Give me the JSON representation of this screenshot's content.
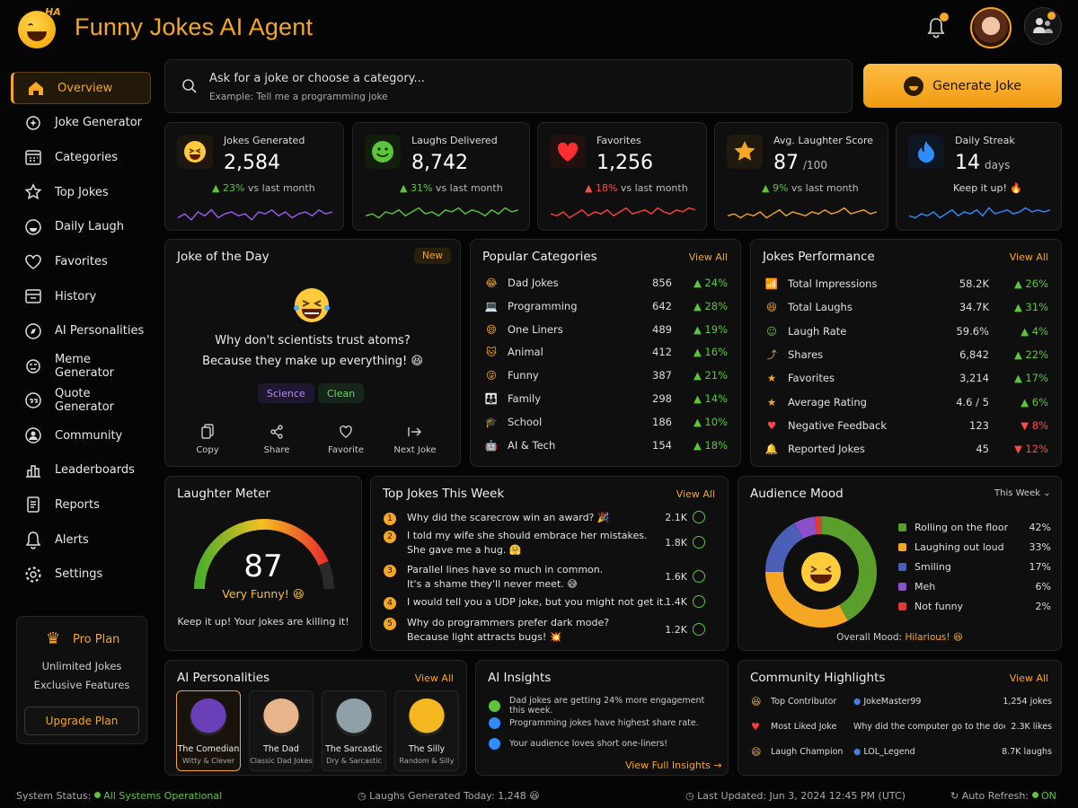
{
  "header": {
    "title": "Funny Jokes AI Agent",
    "logo_text": "HA"
  },
  "sidebar": {
    "items": [
      {
        "label": "Overview",
        "icon": "home-icon",
        "active": true
      },
      {
        "label": "Joke Generator",
        "icon": "sparkle-gear-icon"
      },
      {
        "label": "Categories",
        "icon": "calendar-grid-icon"
      },
      {
        "label": "Top Jokes",
        "icon": "star-icon"
      },
      {
        "label": "Daily Laugh",
        "icon": "laugh-icon"
      },
      {
        "label": "Favorites",
        "icon": "heart-icon"
      },
      {
        "label": "History",
        "icon": "history-icon"
      },
      {
        "label": "AI Personalities",
        "icon": "compass-icon"
      },
      {
        "label": "Meme Generator",
        "icon": "meme-icon"
      },
      {
        "label": "Quote Generator",
        "icon": "quote-icon"
      },
      {
        "label": "Community",
        "icon": "community-icon"
      },
      {
        "label": "Leaderboards",
        "icon": "leaderboard-icon"
      },
      {
        "label": "Reports",
        "icon": "report-icon"
      },
      {
        "label": "Alerts",
        "icon": "bell-icon"
      },
      {
        "label": "Settings",
        "icon": "gear-icon"
      }
    ],
    "pro": {
      "title": "Pro Plan",
      "line1": "Unlimited Jokes",
      "line2": "Exclusive Features",
      "button": "Upgrade Plan"
    }
  },
  "search": {
    "placeholder": "Ask for a joke or choose a category...",
    "example": "Example: Tell me a programming joke"
  },
  "generate_button": "Generate Joke",
  "stats": [
    {
      "label": "Jokes Generated",
      "value": "2,584",
      "unit": "",
      "trend_dir": "up",
      "trend": "23%",
      "trend_suffix": "vs last month",
      "color": "#9b5cf5",
      "icon": "laughing-face-icon"
    },
    {
      "label": "Laughs Delivered",
      "value": "8,742",
      "unit": "",
      "trend_dir": "up",
      "trend": "31%",
      "trend_suffix": "vs last month",
      "color": "#5cc53b",
      "icon": "smile-face-icon"
    },
    {
      "label": "Favorites",
      "value": "1,256",
      "unit": "",
      "trend_dir": "up",
      "trend": "18%",
      "trend_suffix": "vs last month",
      "color": "#ff4040",
      "icon": "heart-icon"
    },
    {
      "label": "Avg. Laughter Score",
      "value": "87",
      "unit": "/100",
      "trend_dir": "up",
      "trend": "9%",
      "trend_suffix": "vs last month",
      "color": "#f5a623",
      "icon": "star-icon"
    },
    {
      "label": "Daily Streak",
      "value": "14",
      "unit": "days",
      "trend_dir": "",
      "trend": "",
      "trend_suffix": "Keep it up! 🔥",
      "color": "#2f8cff",
      "icon": "flame-icon"
    }
  ],
  "joke_of_day": {
    "title": "Joke of the Day",
    "badge": "New",
    "line1": "Why don't scientists trust atoms?",
    "line2": "Because they make up everything! 😆",
    "tags": [
      "Science",
      "Clean"
    ],
    "actions": [
      "Copy",
      "Share",
      "Favorite",
      "Next Joke"
    ]
  },
  "popular_categories": {
    "title": "Popular Categories",
    "view_all": "View All",
    "rows": [
      {
        "icon": "😂",
        "label": "Dad Jokes",
        "value": "856",
        "trend": "▲ 24%",
        "dir": "up"
      },
      {
        "icon": "💻",
        "label": "Programming",
        "value": "642",
        "trend": "▲ 28%",
        "dir": "up"
      },
      {
        "icon": "😄",
        "label": "One Liners",
        "value": "489",
        "trend": "▲ 19%",
        "dir": "up"
      },
      {
        "icon": "🐱",
        "label": "Animal",
        "value": "412",
        "trend": "▲ 16%",
        "dir": "up"
      },
      {
        "icon": "😜",
        "label": "Funny",
        "value": "387",
        "trend": "▲ 21%",
        "dir": "up"
      },
      {
        "icon": "👪",
        "label": "Family",
        "value": "298",
        "trend": "▲ 14%",
        "dir": "up"
      },
      {
        "icon": "🎓",
        "label": "School",
        "value": "186",
        "trend": "▲ 10%",
        "dir": "up"
      },
      {
        "icon": "🤖",
        "label": "AI & Tech",
        "value": "154",
        "trend": "▲ 18%",
        "dir": "up"
      }
    ]
  },
  "jokes_performance": {
    "title": "Jokes Performance",
    "view_all": "View All",
    "rows": [
      {
        "icon": "📶",
        "label": "Total Impressions",
        "value": "58.2K",
        "trend": "▲ 26%",
        "dir": "up"
      },
      {
        "icon": "😆",
        "label": "Total Laughs",
        "value": "34.7K",
        "trend": "▲ 31%",
        "dir": "up"
      },
      {
        "icon": "☺",
        "label": "Laugh Rate",
        "value": "59.6%",
        "trend": "▲ 4%",
        "dir": "up"
      },
      {
        "icon": "⤴",
        "label": "Shares",
        "value": "6,842",
        "trend": "▲ 22%",
        "dir": "up"
      },
      {
        "icon": "★",
        "label": "Favorites",
        "value": "3,214",
        "trend": "▲ 17%",
        "dir": "up"
      },
      {
        "icon": "★",
        "label": "Average Rating",
        "value": "4.6 / 5",
        "trend": "▲ 6%",
        "dir": "up"
      },
      {
        "icon": "♥",
        "label": "Negative Feedback",
        "value": "123",
        "trend": "▼ 8%",
        "dir": "down"
      },
      {
        "icon": "🔔",
        "label": "Reported Jokes",
        "value": "45",
        "trend": "▼ 12%",
        "dir": "down"
      }
    ]
  },
  "laughter_meter": {
    "title": "Laughter Meter",
    "value": "87",
    "score": 87,
    "max": 100,
    "label": "Very Funny! 😆",
    "message": "Keep it up! Your jokes are killing it!"
  },
  "top_jokes": {
    "title": "Top Jokes This Week",
    "view_all": "View All",
    "items": [
      {
        "num": "1",
        "line1": "Why did the scarecrow win an award? 🎉",
        "line2": "",
        "count": "2.1K"
      },
      {
        "num": "2",
        "line1": "I told my wife she should embrace her mistakes.",
        "line2": "She gave me a hug. 🤗",
        "count": "1.8K"
      },
      {
        "num": "3",
        "line1": "Parallel lines have so much in common.",
        "line2": "It's a shame they'll never meet. 😅",
        "count": "1.6K"
      },
      {
        "num": "4",
        "line1": "I would tell you a UDP joke, but you might not get it.",
        "line2": "",
        "count": "1.4K"
      },
      {
        "num": "5",
        "line1": "Why do programmers prefer dark mode?",
        "line2": "Because light attracts bugs! 💥",
        "count": "1.2K"
      }
    ]
  },
  "audience_mood": {
    "title": "Audience Mood",
    "period": "This Week",
    "overall_label": "Overall Mood:",
    "overall_value": "Hilarious! 😆",
    "segments": [
      {
        "label": "Rolling on the floor",
        "value": 42,
        "display": "42%",
        "color": "#5a9e2c"
      },
      {
        "label": "Laughing out loud",
        "value": 33,
        "display": "33%",
        "color": "#f5a623"
      },
      {
        "label": "Smiling",
        "value": 17,
        "display": "17%",
        "color": "#4a5fb5"
      },
      {
        "label": "Meh",
        "value": 6,
        "display": "6%",
        "color": "#8a4fc9"
      },
      {
        "label": "Not funny",
        "value": 2,
        "display": "2%",
        "color": "#e03a3a"
      }
    ]
  },
  "personalities": {
    "title": "AI Personalities",
    "view_all": "View All",
    "items": [
      {
        "name": "The Comedian",
        "desc": "Witty & Clever",
        "color": "#6b3fb8",
        "icon": "comedian-avatar-icon"
      },
      {
        "name": "The Dad",
        "desc": "Classic Dad Jokes",
        "color": "#e8b48a",
        "icon": "dad-avatar-icon"
      },
      {
        "name": "The Sarcastic",
        "desc": "Dry & Sarcastic",
        "color": "#8fa0a8",
        "icon": "sarcastic-avatar-icon"
      },
      {
        "name": "The Silly",
        "desc": "Random & Silly",
        "color": "#f5b820",
        "icon": "silly-avatar-icon"
      }
    ]
  },
  "insights": {
    "title": "AI Insights",
    "items": [
      {
        "text": "Dad jokes are getting 24% more engagement this week.",
        "color": "#5cc53b"
      },
      {
        "text": "Programming jokes have highest share rate.",
        "color": "#2f8cff"
      },
      {
        "text": "Your audience loves short one-liners!",
        "color": "#2f8cff"
      }
    ],
    "more": "View Full Insights  →"
  },
  "community": {
    "title": "Community Highlights",
    "view_all": "View All",
    "rows": [
      {
        "icon": "😆",
        "label": "Top Contributor",
        "user": "JokeMaster99",
        "value": "1,254 jokes"
      },
      {
        "icon": "♥",
        "label": "Most Liked Joke",
        "user": "Why did the computer go to the doctor?...",
        "value": "2.3K likes"
      },
      {
        "icon": "😄",
        "label": "Laugh Champion",
        "user": "LOL_Legend",
        "value": "8.7K laughs"
      }
    ]
  },
  "footer": {
    "status_label": "System Status:",
    "status_value": "All Systems Operational",
    "today": "Laughs Generated Today: 1,248 😆",
    "updated": "Last Updated: Jun 3, 2024 12:45 PM (UTC)",
    "refresh_label": "Auto Refresh:",
    "refresh_value": "ON"
  }
}
